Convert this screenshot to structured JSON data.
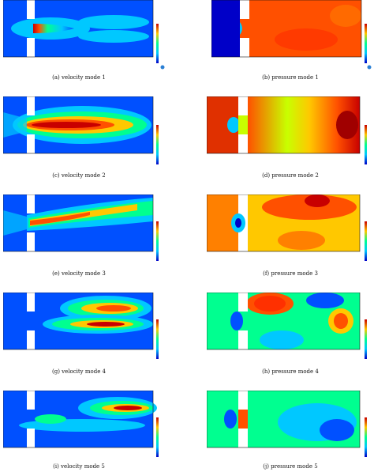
{
  "figure": {
    "panels": [
      {
        "id": "a",
        "caption": "(a) velocity mode 1",
        "field": "velocity",
        "mode": 1
      },
      {
        "id": "b",
        "caption": "(b) pressure mode 1",
        "field": "pressure",
        "mode": 1
      },
      {
        "id": "c",
        "caption": "(c) velocity mode 2",
        "field": "velocity",
        "mode": 2
      },
      {
        "id": "d",
        "caption": "(d) pressure mode 2",
        "field": "pressure",
        "mode": 2
      },
      {
        "id": "e",
        "caption": "(e) velocity mode 3",
        "field": "velocity",
        "mode": 3
      },
      {
        "id": "f",
        "caption": "(f) pressure mode 3",
        "field": "pressure",
        "mode": 3
      },
      {
        "id": "g",
        "caption": "(g) velocity mode 4",
        "field": "velocity",
        "mode": 4
      },
      {
        "id": "h",
        "caption": "(h) pressure mode 4",
        "field": "pressure",
        "mode": 4
      },
      {
        "id": "i",
        "caption": "(i) velocity mode 5",
        "field": "velocity",
        "mode": 5
      },
      {
        "id": "j",
        "caption": "(j) pressure mode 5",
        "field": "pressure",
        "mode": 5
      }
    ],
    "colormap": [
      "#0000c8",
      "#0050ff",
      "#00c8ff",
      "#00ff90",
      "#c8ff00",
      "#ffc800",
      "#ff5000",
      "#c80000"
    ]
  }
}
